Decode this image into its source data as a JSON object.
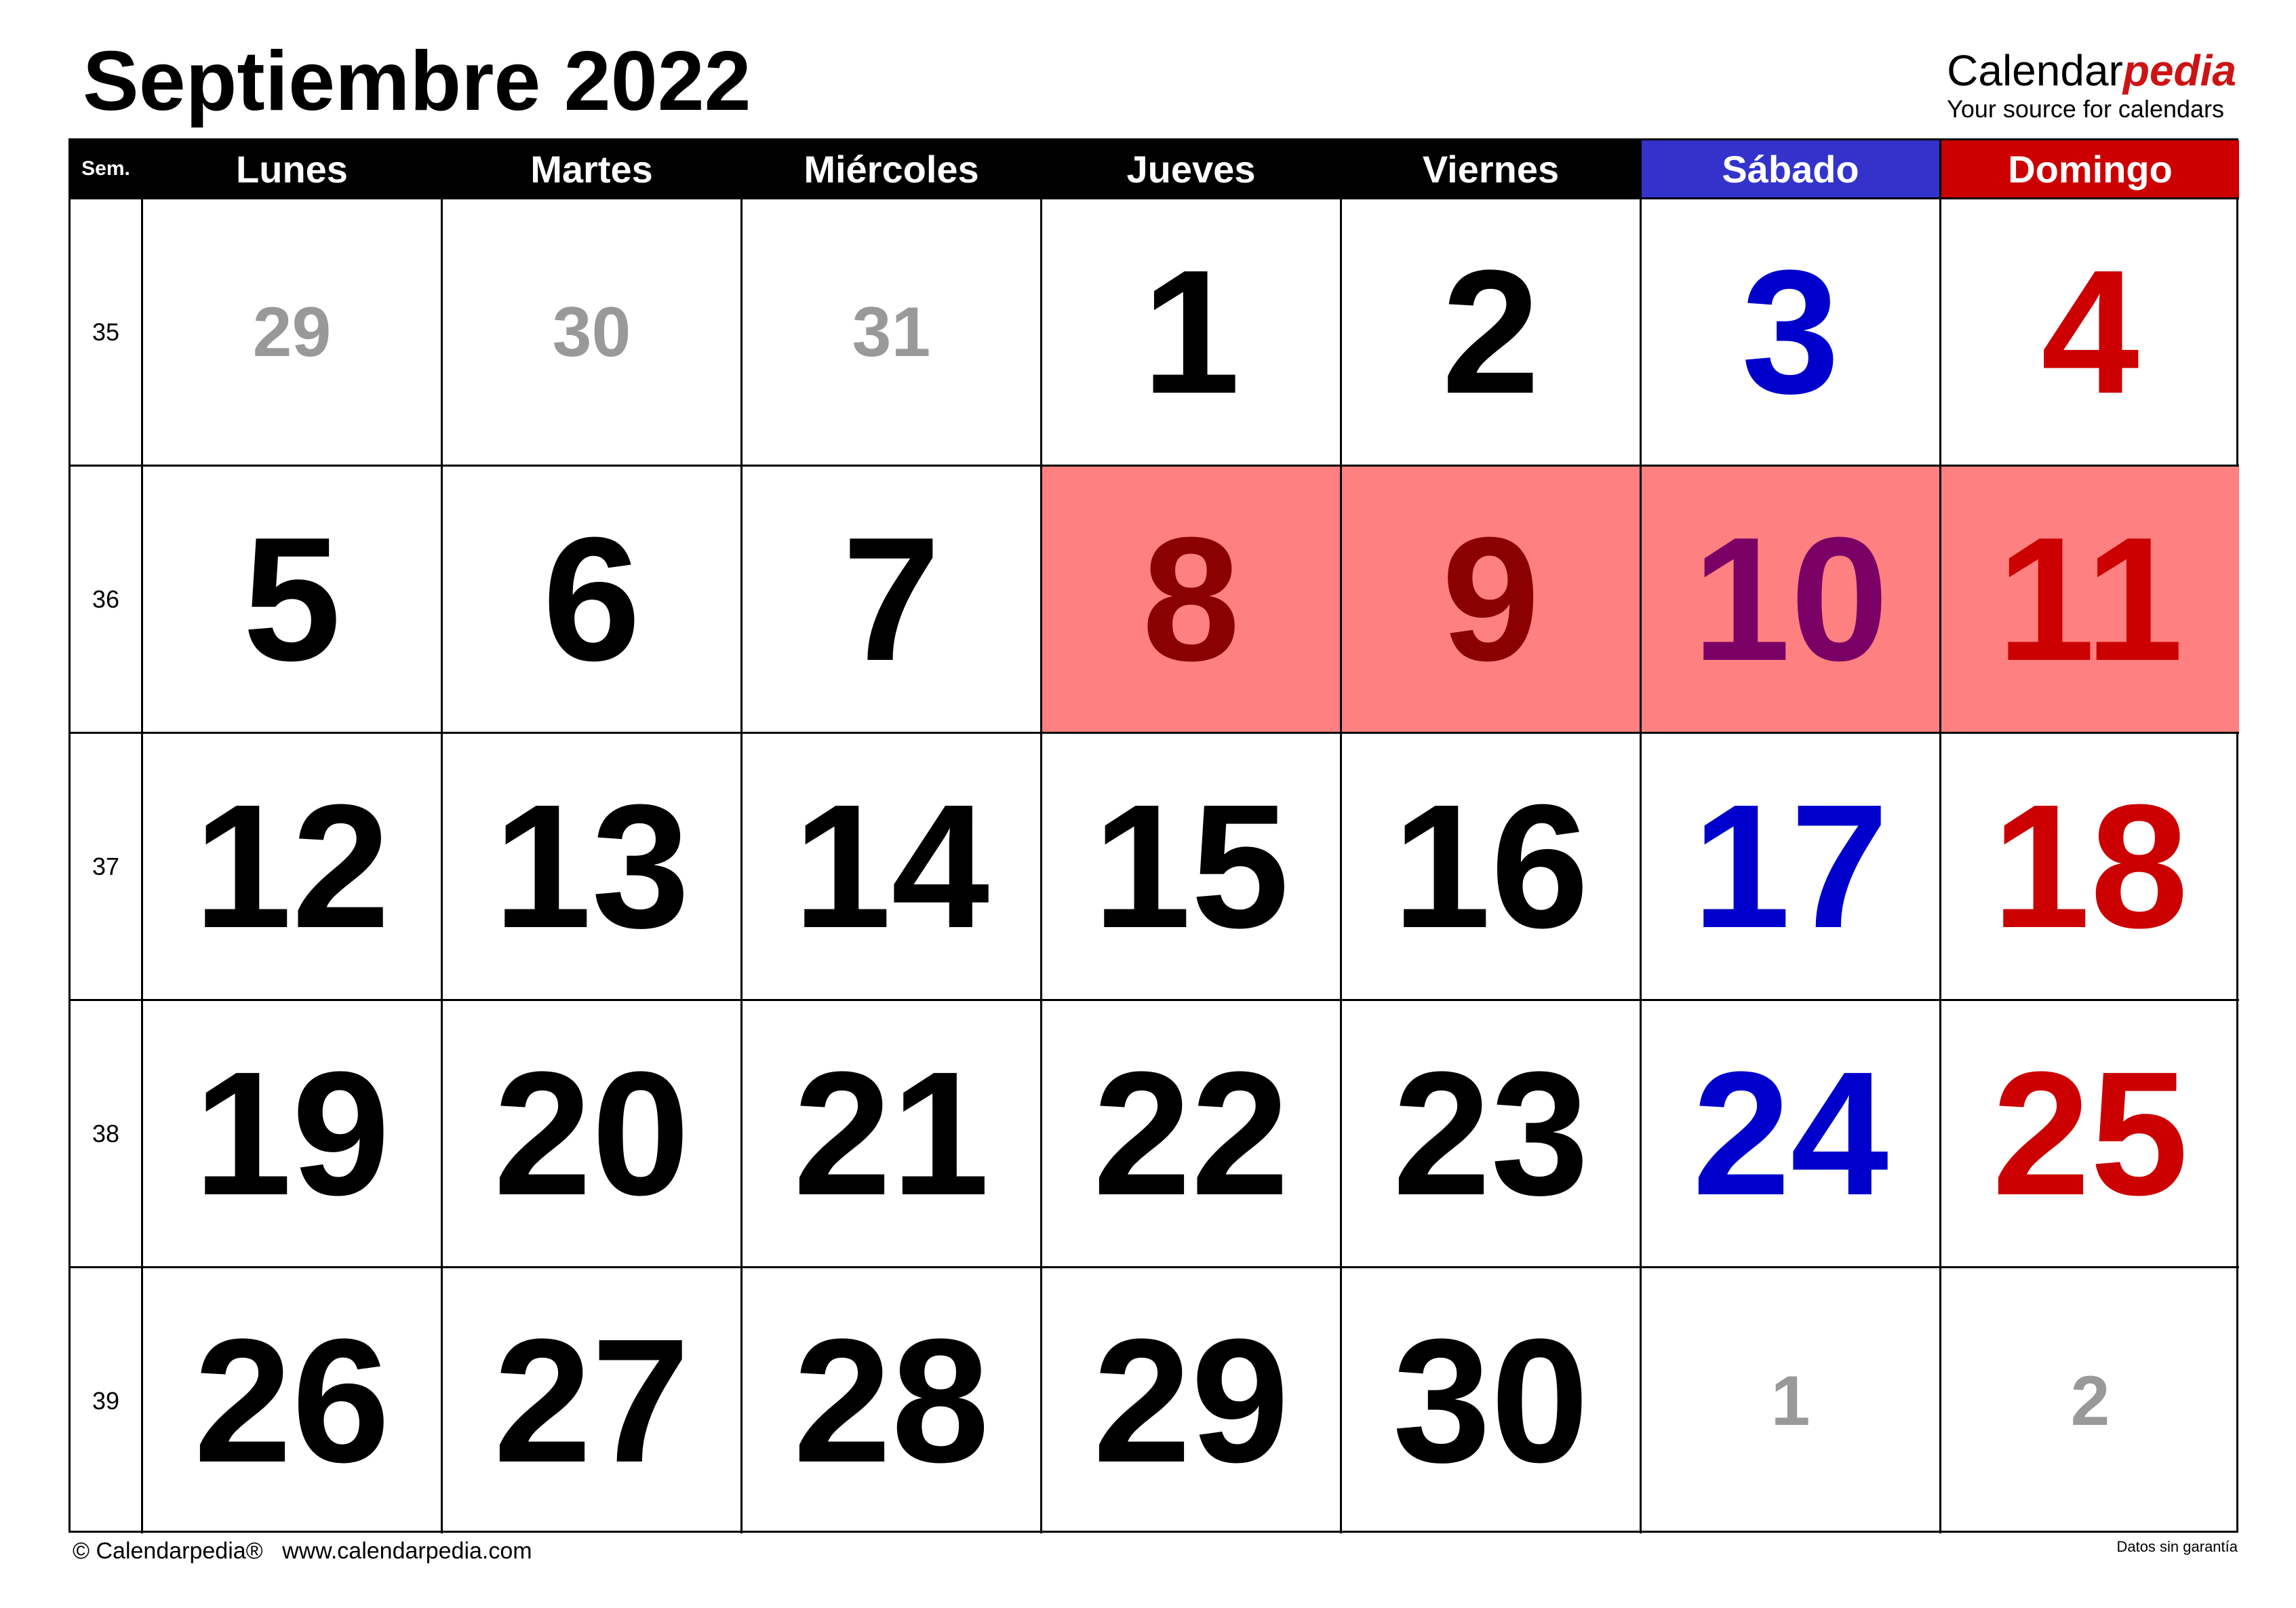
{
  "title": "Septiembre 2022",
  "brand": {
    "name_main": "Calendar",
    "name_accent": "pedia",
    "tagline": "Your source for calendars"
  },
  "header": {
    "week_label": "Sem.",
    "days": [
      "Lunes",
      "Martes",
      "Miércoles",
      "Jueves",
      "Viernes",
      "Sábado",
      "Domingo"
    ]
  },
  "colors": {
    "saturday_header": "#3333cc",
    "sunday_header": "#cc0000",
    "saturday_text": "#0000cc",
    "sunday_text": "#cc0000",
    "other_month_text": "#999999",
    "highlight_fill": "#ff8080"
  },
  "weeks": [
    {
      "number": "35",
      "days": [
        "29",
        "30",
        "31",
        "1",
        "2",
        "3",
        "4"
      ]
    },
    {
      "number": "36",
      "days": [
        "5",
        "6",
        "7",
        "8",
        "9",
        "10",
        "11"
      ]
    },
    {
      "number": "37",
      "days": [
        "12",
        "13",
        "14",
        "15",
        "16",
        "17",
        "18"
      ]
    },
    {
      "number": "38",
      "days": [
        "19",
        "20",
        "21",
        "22",
        "23",
        "24",
        "25"
      ]
    },
    {
      "number": "39",
      "days": [
        "26",
        "27",
        "28",
        "29",
        "30",
        "1",
        "2"
      ]
    }
  ],
  "highlighted_days": [
    "8",
    "9",
    "10",
    "11"
  ],
  "footer": {
    "copyright": "© Calendarpedia®",
    "website": "www.calendarpedia.com",
    "disclaimer": "Datos sin garantía"
  }
}
